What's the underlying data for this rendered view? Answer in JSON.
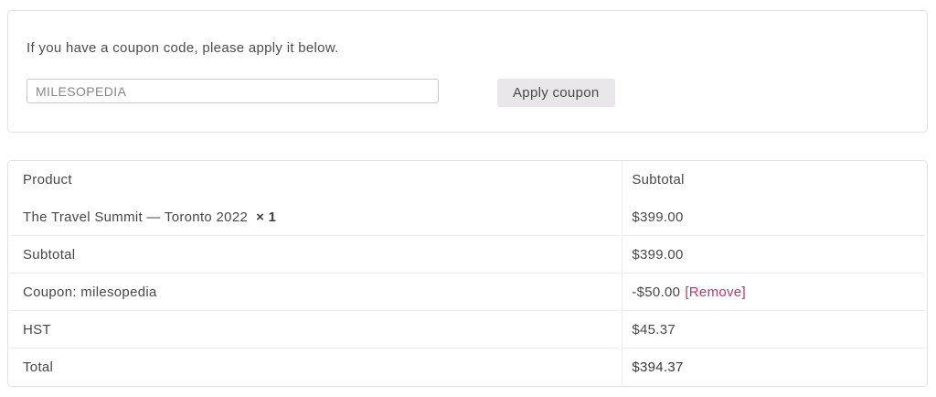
{
  "coupon_panel": {
    "message": "If you have a coupon code, please apply it below.",
    "input_value": "MILESOPEDIA",
    "apply_button_label": "Apply coupon"
  },
  "order_table": {
    "headers": {
      "product": "Product",
      "subtotal": "Subtotal"
    },
    "product_row": {
      "name": "The Travel Summit — Toronto 2022",
      "quantity": "× 1",
      "price": "$399.00"
    },
    "rows": [
      {
        "label": "Subtotal",
        "value": "$399.00"
      },
      {
        "label": "Coupon: milesopedia",
        "value": "-$50.00",
        "action": "[Remove]"
      },
      {
        "label": "HST",
        "value": "$45.37"
      },
      {
        "label": "Total",
        "value": "$394.37"
      }
    ]
  },
  "colors": {
    "remove_link": "#b13e70",
    "button_background": "#e9e6e9",
    "panel_border": "#e2e2e2",
    "row_border": "#ececec"
  }
}
